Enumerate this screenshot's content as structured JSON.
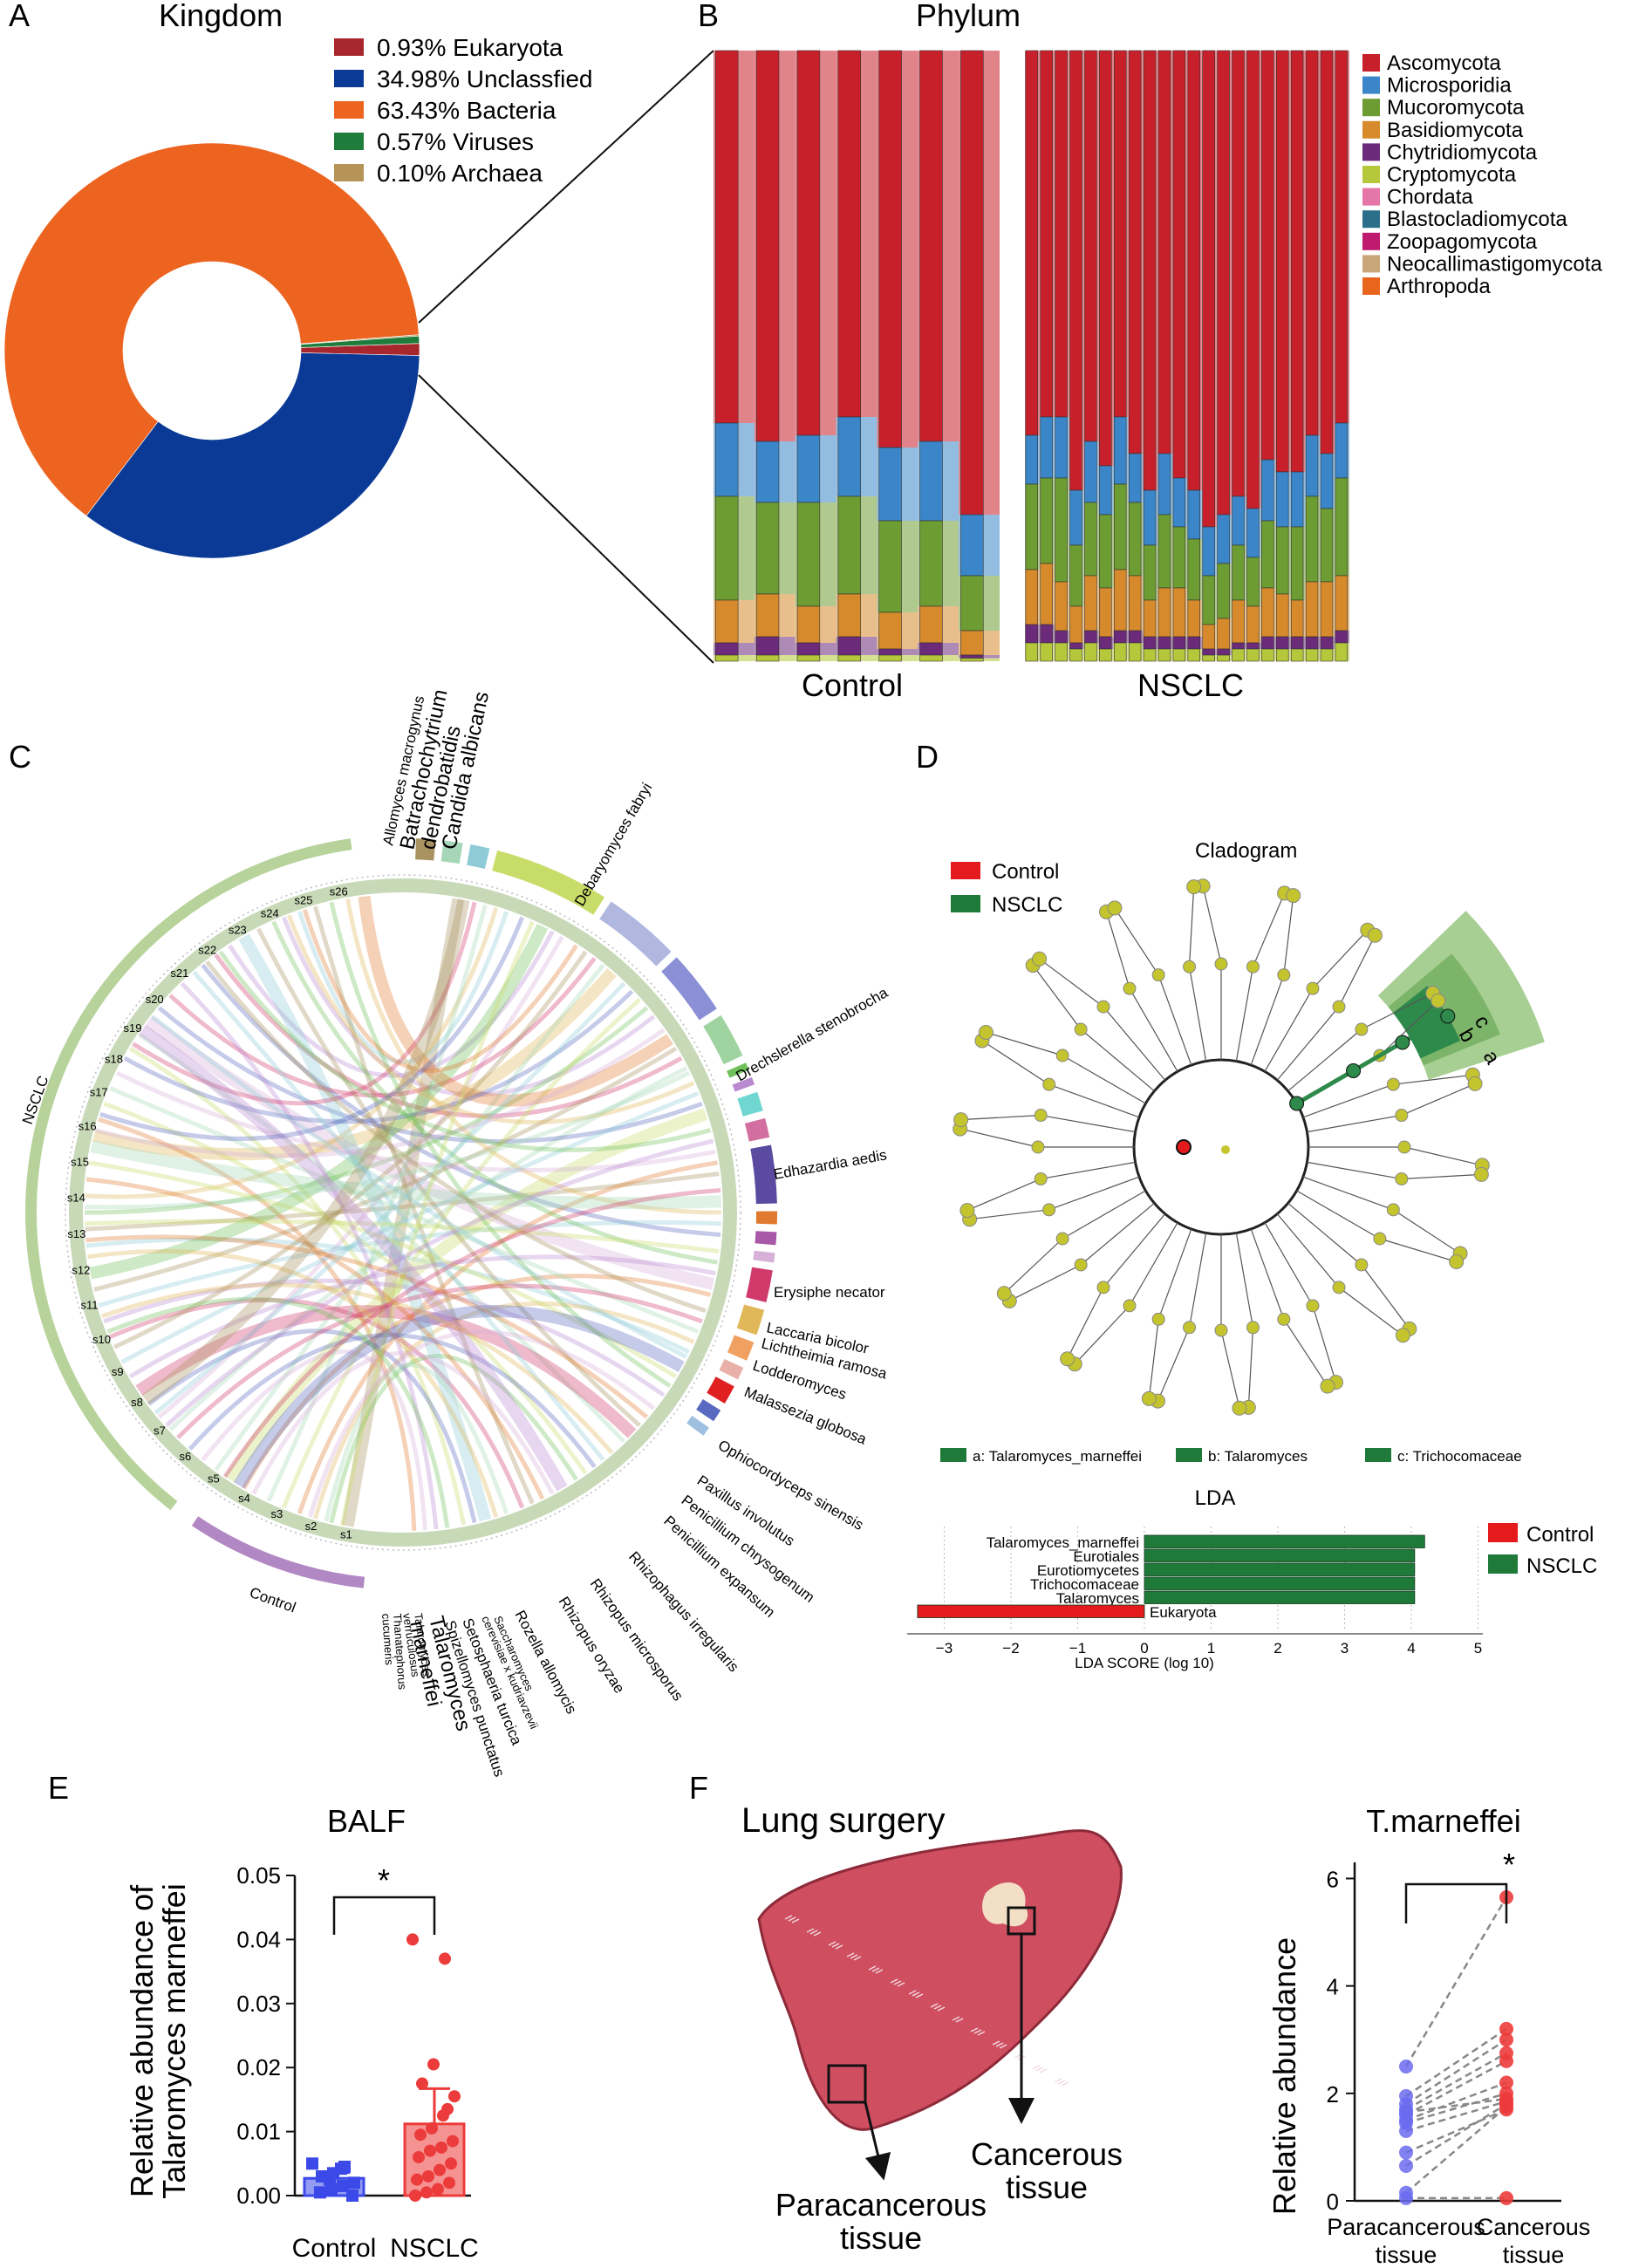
{
  "panels": {
    "a": "A",
    "b": "B",
    "c": "C",
    "d": "D",
    "e": "E",
    "f": "F"
  },
  "colors": {
    "eukaryota": "#a8262d",
    "unclassified": "#0b3a96",
    "bacteria": "#ec6420",
    "viruses": "#1f7d3c",
    "archaea": "#b69457",
    "control_red": "#e41a1c",
    "nsclc_green": "#1f7a3a",
    "node": "#c4c42e",
    "balf_blue": "#3b49e8",
    "balf_red": "#ec3b3b"
  },
  "chart_data": [
    {
      "id": "A",
      "type": "pie",
      "title": "Kingdom",
      "slices": [
        {
          "label": "Eukaryota",
          "value": 0.93,
          "text": "0.93%  Eukaryota",
          "color": "#a8262d"
        },
        {
          "label": "Unclassfied",
          "value": 34.98,
          "text": "34.98%  Unclassfied",
          "color": "#0b3a96"
        },
        {
          "label": "Bacteria",
          "value": 63.43,
          "text": "63.43%  Bacteria",
          "color": "#ec6420"
        },
        {
          "label": "Viruses",
          "value": 0.57,
          "text": "0.57%  Viruses",
          "color": "#1f7d3c"
        },
        {
          "label": "Archaea",
          "value": 0.1,
          "text": "0.10%  Archaea",
          "color": "#b69457"
        }
      ]
    },
    {
      "id": "B",
      "type": "bar",
      "stacked": true,
      "title": "Phylum",
      "groups": [
        "Control",
        "NSCLC"
      ],
      "legend": [
        "Ascomycota",
        "Microsporidia",
        "Mucoromycota",
        "Basidiomycota",
        "Chytridiomycota",
        "Cryptomycota",
        "Chordata",
        "Blastocladiomycota",
        "Zoopagomycota",
        "Neocallimastigomycota",
        "Arthropoda"
      ],
      "legend_colors": [
        "#c8202a",
        "#3a86c8",
        "#6d9c32",
        "#d68a2c",
        "#6b2a7a",
        "#b5c73a",
        "#e477a8",
        "#2c6f8a",
        "#c01a6e",
        "#c9a679",
        "#e8651e"
      ],
      "control_samples": [
        [
          61,
          12,
          17,
          7,
          2,
          1
        ],
        [
          64,
          10,
          15,
          7,
          3,
          1
        ],
        [
          63,
          11,
          17,
          6,
          2,
          1
        ],
        [
          60,
          13,
          16,
          7,
          3,
          1
        ],
        [
          65,
          12,
          15,
          6,
          1,
          1
        ],
        [
          64,
          13,
          14,
          6,
          2,
          1
        ],
        [
          76,
          10,
          9,
          4,
          0.5,
          0.5
        ]
      ],
      "nsclc_samples": [
        [
          63,
          8,
          14,
          9,
          3,
          3
        ],
        [
          60,
          10,
          14,
          10,
          3,
          3
        ],
        [
          60,
          10,
          17,
          8,
          2,
          3
        ],
        [
          72,
          9,
          10,
          6,
          1,
          2
        ],
        [
          64,
          10,
          12,
          9,
          2,
          3
        ],
        [
          68,
          8,
          12,
          8,
          2,
          2
        ],
        [
          60,
          11,
          14,
          10,
          2,
          3
        ],
        [
          66,
          8,
          12,
          9,
          2,
          3
        ],
        [
          72,
          9,
          9,
          6,
          2,
          2
        ],
        [
          66,
          10,
          12,
          8,
          2,
          2
        ],
        [
          70,
          8,
          10,
          8,
          2,
          2
        ],
        [
          72,
          8,
          10,
          6,
          2,
          2
        ],
        [
          78,
          8,
          8,
          4,
          1,
          1
        ],
        [
          76,
          8,
          9,
          5,
          1,
          1
        ],
        [
          73,
          8,
          9,
          7,
          1,
          2
        ],
        [
          75,
          8,
          8,
          6,
          1,
          2
        ],
        [
          67,
          10,
          11,
          8,
          2,
          2
        ],
        [
          69,
          9,
          11,
          7,
          2,
          2
        ],
        [
          69,
          9,
          12,
          6,
          2,
          2
        ],
        [
          63,
          10,
          14,
          9,
          2,
          2
        ],
        [
          66,
          9,
          12,
          9,
          2,
          2
        ],
        [
          61,
          9,
          16,
          9,
          2,
          3
        ]
      ]
    },
    {
      "id": "C",
      "type": "chord",
      "arcs_labels": {
        "nsclc": "NSCLC",
        "control": "Control"
      },
      "top_species": [
        "Allomyces macrogynus",
        "Batrachochytrium dendrobatidis",
        "Candida albicans"
      ],
      "species": [
        {
          "name": "Debaryomyces fabryi",
          "color": "#a8925f"
        },
        {
          "name": "Drechslerella stenobrocha",
          "color": "#a6d6b8"
        },
        {
          "name": "Edhazardia aedis",
          "color": "#8ecbd6"
        },
        {
          "name": "Erysiphe necator",
          "color": "#c8dc6a"
        },
        {
          "name": "Laccaria bicolor",
          "color": "#b0b8e0"
        },
        {
          "name": "Lichtheimia ramosa",
          "color": "#8b8fd6"
        },
        {
          "name": "Lodderomyces",
          "color": "#9fd4a0"
        },
        {
          "name": "Malassezia globosa",
          "color": "#6fbf5a"
        },
        {
          "name": "Ophiocordyceps sinensis",
          "color": "#b98ad0"
        },
        {
          "name": "Paxillus involutus",
          "color": "#6fd6d0"
        },
        {
          "name": "Penicillium chrysogenum",
          "color": "#d36fa0"
        },
        {
          "name": "Penicillium expansum",
          "color": "#5a4aa0"
        },
        {
          "name": "Rhizophagus irregularis",
          "color": "#e07a30"
        },
        {
          "name": "Rhizopus microsporus",
          "color": "#a85aa8"
        },
        {
          "name": "Rhizopus oryzae",
          "color": "#d6b0d6"
        },
        {
          "name": "Rozella allomycis",
          "color": "#d03a6a"
        },
        {
          "name": "Saccharomyces cerevisiae x kudriavzevii",
          "color": "#e0b85a"
        },
        {
          "name": "Setosphaeria turcica",
          "color": "#f0a060"
        },
        {
          "name": "Spizellomyces punctatus",
          "color": "#e8b0a8"
        },
        {
          "name": "Talaromyces marneffei",
          "color": "#e02020"
        },
        {
          "name": "Talaromyces verruculosus",
          "color": "#5a6ac0"
        },
        {
          "name": "Thanatephorus cucumeris",
          "color": "#9fc0e0"
        }
      ],
      "label_texts": {
        "allomyces": "Allomyces macrogynus",
        "batra1": "Batrachochytrium",
        "batra2": "dendrobatidis",
        "candida": "Candida albicans",
        "debary": "Debaryomyces fabryi",
        "drechs": "Drechslerella stenobrocha",
        "edhaz": "Edhazardia aedis",
        "erysiphe": "Erysiphe necator",
        "laccaria": "Laccaria bicolor",
        "lichth": "Lichtheimia ramosa",
        "lodder": "Lodderomyces",
        "malass": "Malassezia globosa",
        "ophio": "Ophiocordyceps sinensis",
        "paxil": "Paxillus involutus",
        "penchry": "Penicillium chrysogenum",
        "penexp": "Penicillium expansum",
        "rhizirr": "Rhizophagus irregularis",
        "rhizmic": "Rhizopus microsporus",
        "rhizory": "Rhizopus oryzae",
        "rozella": "Rozella allomycis",
        "sacch1": "Saccharomyces",
        "sacch2": "cerevisiae x kudriavzevii",
        "setos": "Setosphaeria turcica",
        "spiz": "Spizellomyces punctatus",
        "talmar1": "Talaromyces",
        "talmar2": "marneffei",
        "talver1": "Talaromyces",
        "talver2": "verruculosus",
        "thana1": "Thanatephorus",
        "thana2": "cucumeris"
      },
      "samples": [
        "s1",
        "s2",
        "s3",
        "s4",
        "s5",
        "s6",
        "s7",
        "s8",
        "s9",
        "s10",
        "s11",
        "s12",
        "s13",
        "s14",
        "s15",
        "s16",
        "s17",
        "s18",
        "s19",
        "s20",
        "s21",
        "s22",
        "s23",
        "s24",
        "s25",
        "s26"
      ]
    },
    {
      "id": "D",
      "type": "cladogram",
      "title": "Cladogram",
      "legend": [
        {
          "label": "Control",
          "color": "#e41a1c"
        },
        {
          "label": "NSCLC",
          "color": "#1f7a3a"
        }
      ],
      "sector_letters": [
        "a",
        "b",
        "c"
      ],
      "biomarkers": [
        "a: Talaromyces_marneffei",
        "b: Talaromyces",
        "c: Trichocomaceae"
      ]
    },
    {
      "id": "D-LDA",
      "type": "bar",
      "orientation": "horizontal",
      "title": "LDA",
      "xlabel": "LDA SCORE (log 10)",
      "xlim": [
        -3.5,
        5.3
      ],
      "xticks": [
        -3,
        -2,
        -1,
        0,
        1,
        2,
        3,
        4,
        5
      ],
      "categories": [
        "Talaromyces_marneffei",
        "Eurotiales",
        "Eurotiomycetes",
        "Trichocomaceae",
        "Talaromyces",
        "Eukaryota"
      ],
      "values": [
        4.2,
        4.05,
        4.05,
        4.05,
        4.05,
        -3.4
      ],
      "groups": [
        "NSCLC",
        "NSCLC",
        "NSCLC",
        "NSCLC",
        "NSCLC",
        "Control"
      ],
      "legend": [
        "Control",
        "NSCLC"
      ]
    },
    {
      "id": "E",
      "type": "bar",
      "title": "BALF",
      "categories": [
        "Control",
        "NSCLC"
      ],
      "values": [
        0.0027,
        0.0112
      ],
      "sem": [
        0.0009,
        0.0055
      ],
      "ylabel_lines": [
        "Relative abundance of",
        "Talaromyces marneffei"
      ],
      "ylim": [
        0,
        0.05
      ],
      "yticks": [
        "0.00",
        "0.01",
        "0.02",
        "0.03",
        "0.04",
        "0.05"
      ],
      "points": {
        "Control": [
          0.005,
          0.0045,
          0.0035,
          0.003,
          0.002,
          0.0015,
          0.001,
          0.0005,
          0.0,
          0.0042,
          0.0025
        ],
        "NSCLC": [
          0.04,
          0.037,
          0.0205,
          0.0175,
          0.0155,
          0.0125,
          0.0105,
          0.0095,
          0.0085,
          0.0075,
          0.007,
          0.006,
          0.005,
          0.004,
          0.003,
          0.0025,
          0.002,
          0.001,
          0.0005,
          0.0,
          0.0135
        ]
      },
      "significance": "*"
    },
    {
      "id": "F",
      "type": "scatter",
      "title": "T.marneffei",
      "categories_lines": [
        [
          "Paracancerous",
          "tissue"
        ],
        [
          "Cancerous",
          "tissue"
        ]
      ],
      "ylabel": "Relative abundance",
      "ylim": [
        0,
        6.3
      ],
      "yticks": [
        "0",
        "2",
        "4",
        "6"
      ],
      "pairs": [
        [
          2.5,
          5.65
        ],
        [
          1.95,
          3.2
        ],
        [
          1.8,
          3.0
        ],
        [
          1.7,
          2.75
        ],
        [
          1.6,
          2.6
        ],
        [
          1.5,
          2.2
        ],
        [
          1.45,
          2.0
        ],
        [
          1.3,
          1.85
        ],
        [
          0.9,
          1.7
        ],
        [
          0.65,
          1.8
        ],
        [
          0.15,
          1.75
        ],
        [
          0.05,
          0.05
        ],
        [
          1.65,
          1.9
        ]
      ],
      "significance": "*"
    }
  ],
  "illustration": {
    "title": "Lung surgery",
    "cancer_label": [
      "Cancerous",
      "tissue"
    ],
    "para_label": [
      "Paracancerous",
      "tissue"
    ]
  }
}
